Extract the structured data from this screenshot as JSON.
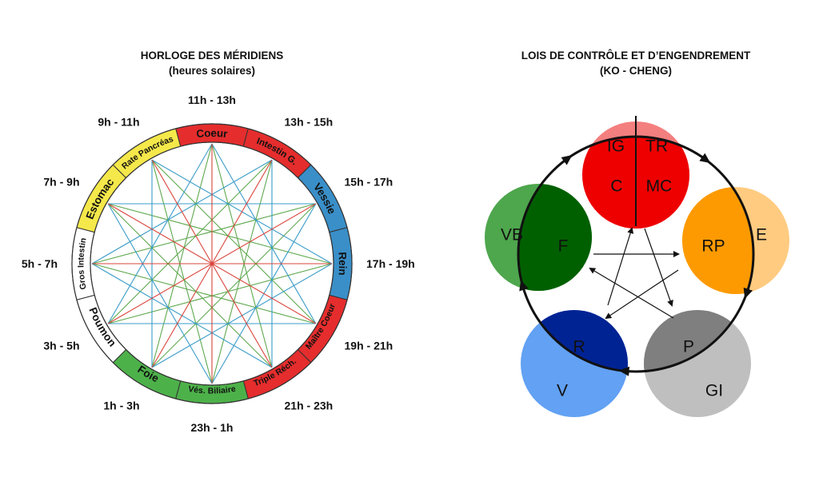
{
  "clock": {
    "title": "HORLOGE DES MÉRIDIENS",
    "subtitle": "(heures solaires)",
    "segments": [
      {
        "label": "Coeur",
        "hours": "11h - 13h",
        "color": "#e52d2d"
      },
      {
        "label": "Intestin G.",
        "hours": "13h - 15h",
        "color": "#e52d2d"
      },
      {
        "label": "Vessie",
        "hours": "15h - 17h",
        "color": "#3a8fc8"
      },
      {
        "label": "Rein",
        "hours": "17h - 19h",
        "color": "#3a8fc8"
      },
      {
        "label": "Maître Coeur",
        "hours": "19h - 21h",
        "color": "#e52d2d"
      },
      {
        "label": "Triple Réch.",
        "hours": "21h - 23h",
        "color": "#e52d2d"
      },
      {
        "label": "Vés. Biliaire",
        "hours": "23h - 1h",
        "color": "#4db14a"
      },
      {
        "label": "Foie",
        "hours": "1h - 3h",
        "color": "#4db14a"
      },
      {
        "label": "Poumon",
        "hours": "3h - 5h",
        "color": "#ffffff"
      },
      {
        "label": "Gros Intestin",
        "hours": "5h - 7h",
        "color": "#ffffff"
      },
      {
        "label": "Estomac",
        "hours": "7h - 9h",
        "color": "#f5e84a"
      },
      {
        "label": "Rate Pancréas",
        "hours": "9h - 11h",
        "color": "#f5e84a"
      }
    ],
    "line_colors": {
      "red": "#d9443b",
      "green": "#5ea84e",
      "blue": "#3a9cc8"
    }
  },
  "ko_cheng": {
    "title": "LOIS DE CONTRÔLE ET D’ENGENDREMENT",
    "subtitle": "(KO - CHENG)",
    "elements": [
      {
        "outer_left": "IG",
        "outer_right": "TR",
        "inner_left": "C",
        "inner_right": "MC",
        "outer_color": "#f47f7f",
        "inner_color": "#ee0000"
      },
      {
        "outer": "E",
        "inner": "RP",
        "outer_color": "#fecb80",
        "inner_color": "#fd9a01"
      },
      {
        "outer": "GI",
        "inner": "P",
        "outer_color": "#bfbfbf",
        "inner_color": "#7f7f7f"
      },
      {
        "outer": "V",
        "inner": "R",
        "outer_color": "#62a1f3",
        "inner_color": "#002394"
      },
      {
        "outer": "VB",
        "inner": "F",
        "outer_color": "#4ea64d",
        "inner_color": "#006000"
      }
    ]
  }
}
